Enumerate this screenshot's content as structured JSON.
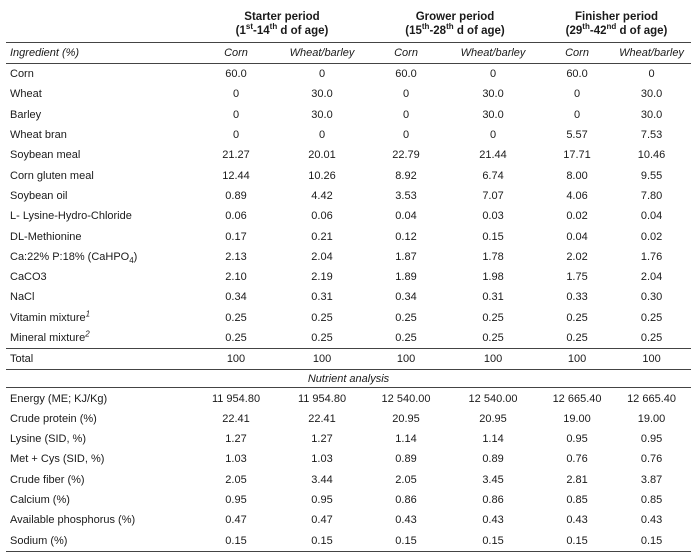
{
  "header": {
    "periods": [
      {
        "name": "Starter period",
        "range_a": "(1",
        "sup_a": "st",
        "range_b": "-14",
        "sup_b": "th",
        "range_c": " d of age)"
      },
      {
        "name": "Grower period",
        "range_a": "(15",
        "sup_a": "th",
        "range_b": "-28",
        "sup_b": "th",
        "range_c": " d of age)"
      },
      {
        "name": "Finisher period",
        "range_a": "(29",
        "sup_a": "th",
        "range_b": "-42",
        "sup_b": "nd",
        "range_c": " d of age)"
      }
    ]
  },
  "subheader": {
    "label": "Ingredient (%)",
    "diets": [
      "Corn",
      "Wheat/barley",
      "Corn",
      "Wheat/barley",
      "Corn",
      "Wheat/barley"
    ]
  },
  "ingredients": [
    {
      "label": "Corn",
      "values": [
        "60.0",
        "0",
        "60.0",
        "0",
        "60.0",
        "0"
      ]
    },
    {
      "label": "Wheat",
      "values": [
        "0",
        "30.0",
        "0",
        "30.0",
        "0",
        "30.0"
      ]
    },
    {
      "label": "Barley",
      "values": [
        "0",
        "30.0",
        "0",
        "30.0",
        "0",
        "30.0"
      ]
    },
    {
      "label": "Wheat bran",
      "values": [
        "0",
        "0",
        "0",
        "0",
        "5.57",
        "7.53"
      ]
    },
    {
      "label": "Soybean meal",
      "values": [
        "21.27",
        "20.01",
        "22.79",
        "21.44",
        "17.71",
        "10.46"
      ]
    },
    {
      "label": "Corn gluten meal",
      "values": [
        "12.44",
        "10.26",
        "8.92",
        "6.74",
        "8.00",
        "9.55"
      ]
    },
    {
      "label": "Soybean oil",
      "values": [
        "0.89",
        "4.42",
        "3.53",
        "7.07",
        "4.06",
        "7.80"
      ]
    },
    {
      "label": "L- Lysine-Hydro-Chloride",
      "values": [
        "0.06",
        "0.06",
        "0.04",
        "0.03",
        "0.02",
        "0.04"
      ]
    },
    {
      "label": "DL-Methionine",
      "values": [
        "0.17",
        "0.21",
        "0.12",
        "0.15",
        "0.04",
        "0.02"
      ]
    },
    {
      "label": "Ca:22% P:18% (CaHPO",
      "label_sub": "4",
      "label_end": ")",
      "values": [
        "2.13",
        "2.04",
        "1.87",
        "1.78",
        "2.02",
        "1.76"
      ]
    },
    {
      "label": "CaCO3",
      "values": [
        "2.10",
        "2.19",
        "1.89",
        "1.98",
        "1.75",
        "2.04"
      ]
    },
    {
      "label": "NaCl",
      "values": [
        "0.34",
        "0.31",
        "0.34",
        "0.31",
        "0.33",
        "0.30"
      ]
    },
    {
      "label": "Vitamin mixture",
      "label_sup": "1",
      "values": [
        "0.25",
        "0.25",
        "0.25",
        "0.25",
        "0.25",
        "0.25"
      ]
    },
    {
      "label": "Mineral mixture",
      "label_sup": "2",
      "values": [
        "0.25",
        "0.25",
        "0.25",
        "0.25",
        "0.25",
        "0.25"
      ]
    },
    {
      "label": "Total",
      "values": [
        "100",
        "100",
        "100",
        "100",
        "100",
        "100"
      ]
    }
  ],
  "nutrient_section_label": "Nutrient analysis",
  "nutrients": [
    {
      "label": "Energy (ME; KJ/Kg)",
      "values": [
        "11 954.80",
        "11 954.80",
        "12 540.00",
        "12 540.00",
        "12 665.40",
        "12 665.40"
      ]
    },
    {
      "label": "Crude protein (%)",
      "values": [
        "22.41",
        "22.41",
        "20.95",
        "20.95",
        "19.00",
        "19.00"
      ]
    },
    {
      "label": "Lysine (SID, %)",
      "values": [
        "1.27",
        "1.27",
        "1.14",
        "1.14",
        "0.95",
        "0.95"
      ]
    },
    {
      "label": "Met + Cys (SID, %)",
      "values": [
        "1.03",
        "1.03",
        "0.89",
        "0.89",
        "0.76",
        "0.76"
      ]
    },
    {
      "label": "Crude fiber (%)",
      "values": [
        "2.05",
        "3.44",
        "2.05",
        "3.45",
        "2.81",
        "3.87"
      ]
    },
    {
      "label": "Calcium (%)",
      "values": [
        "0.95",
        "0.95",
        "0.86",
        "0.86",
        "0.85",
        "0.85"
      ]
    },
    {
      "label": "Available phosphorus (%)",
      "values": [
        "0.47",
        "0.47",
        "0.43",
        "0.43",
        "0.43",
        "0.43"
      ]
    },
    {
      "label": "Sodium (%)",
      "values": [
        "0.15",
        "0.15",
        "0.15",
        "0.15",
        "0.15",
        "0.15"
      ]
    }
  ]
}
